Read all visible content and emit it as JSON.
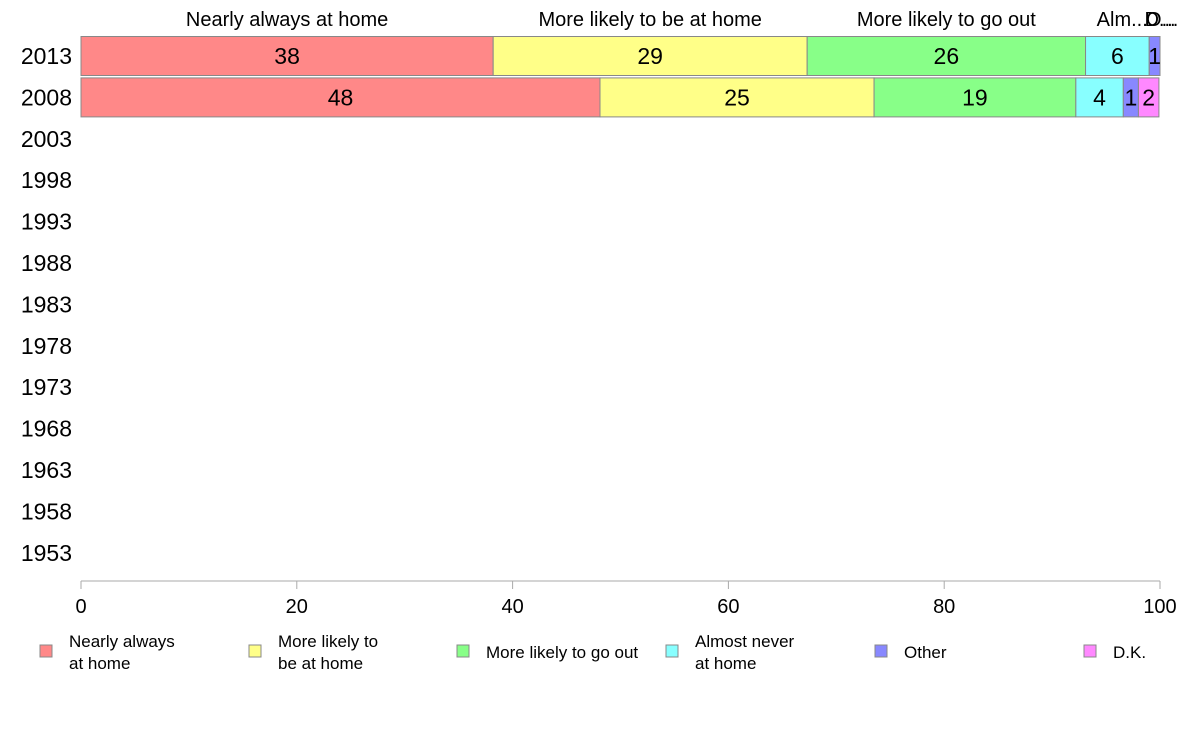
{
  "chart_data": {
    "type": "bar",
    "orientation": "horizontal",
    "stacked": true,
    "years": [
      "2013",
      "2008",
      "2003",
      "1998",
      "1993",
      "1988",
      "1983",
      "1978",
      "1973",
      "1968",
      "1963",
      "1958",
      "1953"
    ],
    "top_labels": [
      "Nearly always at home",
      "More likely to be at home",
      "More likely to go out",
      "Alm...",
      "O...",
      "D..."
    ],
    "series": [
      {
        "name": "Nearly always at home",
        "legend": [
          "Nearly always",
          "at home"
        ],
        "color": "#ff8888",
        "values": [
          38.2,
          48.1,
          null,
          null,
          null,
          null,
          null,
          null,
          null,
          null,
          null,
          null,
          null
        ],
        "labels": [
          "38",
          "48",
          "",
          "",
          "",
          "",
          "",
          "",
          "",
          "",
          "",
          "",
          ""
        ]
      },
      {
        "name": "More likely to be at home",
        "legend": [
          "More likely to",
          "be at home"
        ],
        "color": "#ffff88",
        "values": [
          29.1,
          25.4,
          null,
          null,
          null,
          null,
          null,
          null,
          null,
          null,
          null,
          null,
          null
        ],
        "labels": [
          "29",
          "25",
          "",
          "",
          "",
          "",
          "",
          "",
          "",
          "",
          "",
          "",
          ""
        ]
      },
      {
        "name": "More likely to go out",
        "legend": [
          "More likely to go out"
        ],
        "color": "#88ff88",
        "values": [
          25.8,
          18.7,
          null,
          null,
          null,
          null,
          null,
          null,
          null,
          null,
          null,
          null,
          null
        ],
        "labels": [
          "26",
          "19",
          "",
          "",
          "",
          "",
          "",
          "",
          "",
          "",
          "",
          "",
          ""
        ]
      },
      {
        "name": "Almost never at home",
        "legend": [
          "Almost never",
          "at home"
        ],
        "color": "#88ffff",
        "values": [
          5.9,
          4.4,
          null,
          null,
          null,
          null,
          null,
          null,
          null,
          null,
          null,
          null,
          null
        ],
        "labels": [
          "6",
          "4",
          "",
          "",
          "",
          "",
          "",
          "",
          "",
          "",
          "",
          "",
          ""
        ]
      },
      {
        "name": "Other",
        "legend": [
          "Other"
        ],
        "color": "#8888ff",
        "values": [
          1.0,
          1.4,
          null,
          null,
          null,
          null,
          null,
          null,
          null,
          null,
          null,
          null,
          null
        ],
        "labels": [
          "1",
          "1",
          "",
          "",
          "",
          "",
          "",
          "",
          "",
          "",
          "",
          "",
          ""
        ]
      },
      {
        "name": "D.K.",
        "legend": [
          "D.K."
        ],
        "color": "#ff88ff",
        "values": [
          0,
          1.9,
          null,
          null,
          null,
          null,
          null,
          null,
          null,
          null,
          null,
          null,
          null
        ],
        "labels": [
          "",
          "2",
          "",
          "",
          "",
          "",
          "",
          "",
          "",
          "",
          "",
          "",
          ""
        ]
      }
    ],
    "xlim": [
      0,
      100
    ],
    "xticks": [
      0,
      20,
      40,
      60,
      80,
      100
    ],
    "grid": false,
    "legend_position": "bottom"
  }
}
